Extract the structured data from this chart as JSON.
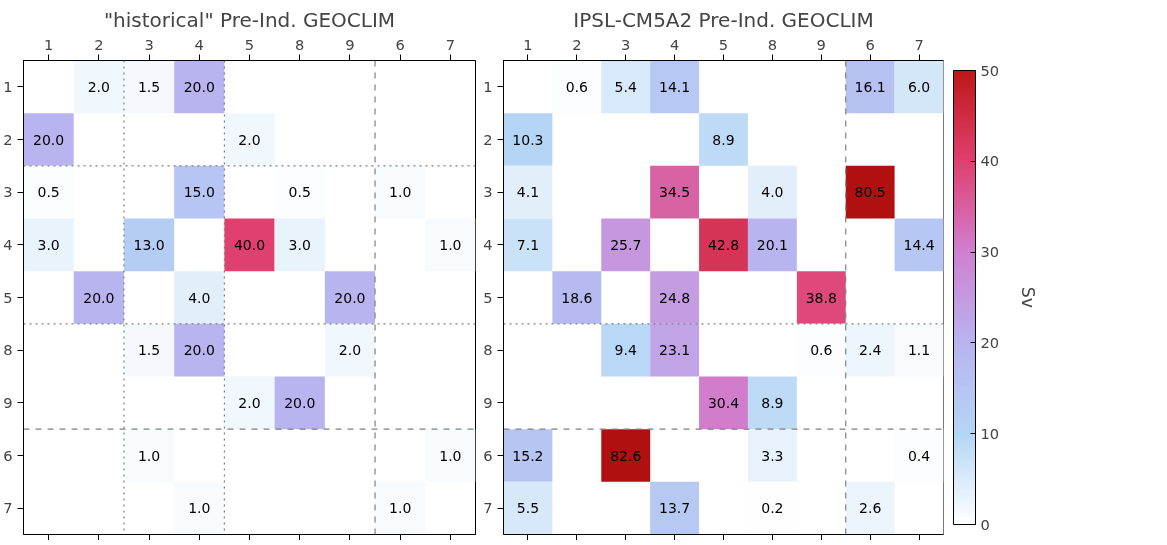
{
  "chart_data": [
    {
      "type": "heatmap",
      "title": "\"historical\" Pre-Ind. GEOCLIM",
      "categories": [
        "1",
        "2",
        "3",
        "4",
        "5",
        "8",
        "9",
        "6",
        "7"
      ],
      "y_categories": [
        "1",
        "2",
        "3",
        "4",
        "5",
        "8",
        "9",
        "6",
        "7"
      ],
      "cells": [
        [
          null,
          2.0,
          1.5,
          20.0,
          null,
          null,
          null,
          null,
          null
        ],
        [
          20.0,
          null,
          null,
          null,
          2.0,
          null,
          null,
          null,
          null
        ],
        [
          0.5,
          null,
          null,
          15.0,
          null,
          0.5,
          null,
          1.0,
          null
        ],
        [
          3.0,
          null,
          13.0,
          null,
          40.0,
          3.0,
          null,
          null,
          1.0
        ],
        [
          null,
          20.0,
          null,
          4.0,
          null,
          null,
          20.0,
          null,
          null
        ],
        [
          null,
          null,
          1.5,
          20.0,
          null,
          null,
          2.0,
          null,
          null
        ],
        [
          null,
          null,
          null,
          null,
          2.0,
          20.0,
          null,
          null,
          null
        ],
        [
          null,
          null,
          1.0,
          null,
          null,
          null,
          null,
          null,
          1.0
        ],
        [
          null,
          null,
          null,
          1.0,
          null,
          null,
          null,
          1.0,
          null
        ]
      ],
      "cell_labels": [
        [
          null,
          "2.0",
          "1.5",
          "20.0",
          null,
          null,
          null,
          null,
          null
        ],
        [
          "20.0",
          null,
          null,
          null,
          "2.0",
          null,
          null,
          null,
          null
        ],
        [
          "0.5",
          null,
          null,
          "15.0",
          null,
          "0.5",
          null,
          "1.0",
          null
        ],
        [
          "3.0",
          null,
          "13.0",
          null,
          "40.0",
          "3.0",
          null,
          null,
          "1.0"
        ],
        [
          null,
          "20.0",
          null,
          "4.0",
          null,
          null,
          "20.0",
          null,
          null
        ],
        [
          null,
          null,
          "1.5",
          "20.0",
          null,
          null,
          "2.0",
          null,
          null
        ],
        [
          null,
          null,
          null,
          null,
          "2.0",
          "20.0",
          null,
          null,
          null
        ],
        [
          null,
          null,
          "1.0",
          null,
          null,
          null,
          null,
          null,
          "1.0"
        ],
        [
          null,
          null,
          null,
          "1.0",
          null,
          null,
          null,
          "1.0",
          null
        ]
      ]
    },
    {
      "type": "heatmap",
      "title": "IPSL-CM5A2 Pre-Ind. GEOCLIM",
      "clabel": "Sv",
      "categories": [
        "1",
        "2",
        "3",
        "4",
        "5",
        "8",
        "9",
        "6",
        "7"
      ],
      "y_categories": [
        "1",
        "2",
        "3",
        "4",
        "5",
        "8",
        "9",
        "6",
        "7"
      ],
      "cells": [
        [
          null,
          0.6,
          5.4,
          14.1,
          null,
          null,
          null,
          16.1,
          6.0
        ],
        [
          10.3,
          null,
          null,
          null,
          8.9,
          null,
          null,
          null,
          null
        ],
        [
          4.1,
          null,
          null,
          34.5,
          null,
          4.0,
          null,
          80.5,
          null
        ],
        [
          7.1,
          null,
          25.7,
          null,
          42.8,
          20.1,
          null,
          null,
          14.4
        ],
        [
          null,
          18.6,
          null,
          24.8,
          null,
          null,
          38.8,
          null,
          null
        ],
        [
          null,
          null,
          9.4,
          23.1,
          null,
          null,
          0.6,
          2.4,
          1.1
        ],
        [
          null,
          null,
          null,
          null,
          30.4,
          8.9,
          null,
          null,
          null
        ],
        [
          15.2,
          null,
          82.6,
          null,
          null,
          3.3,
          null,
          null,
          0.4
        ],
        [
          5.5,
          null,
          null,
          13.7,
          null,
          0.2,
          null,
          2.6,
          null
        ]
      ],
      "cell_labels": [
        [
          null,
          "0.6",
          "5.4",
          "14.1",
          null,
          null,
          null,
          "16.1",
          "6.0"
        ],
        [
          "10.3",
          null,
          null,
          null,
          "8.9",
          null,
          null,
          null,
          null
        ],
        [
          "4.1",
          null,
          null,
          "34.5",
          null,
          "4.0",
          null,
          "80.5",
          null
        ],
        [
          "7.1",
          null,
          "25.7",
          null,
          "42.8",
          "20.1",
          null,
          null,
          "14.4"
        ],
        [
          null,
          "18.6",
          null,
          "24.8",
          null,
          null,
          "38.8",
          null,
          null
        ],
        [
          null,
          null,
          "9.4",
          "23.1",
          null,
          null,
          "0.6",
          "2.4",
          "1.1"
        ],
        [
          null,
          null,
          null,
          null,
          "30.4",
          "8.9",
          null,
          null,
          null
        ],
        [
          "15.2",
          null,
          "82.6",
          null,
          null,
          "3.3",
          null,
          null,
          "0.4"
        ],
        [
          "5.5",
          null,
          null,
          "13.7",
          null,
          "0.2",
          null,
          "2.6",
          null
        ]
      ],
      "clim": [
        0,
        50
      ],
      "cticks": [
        0,
        10,
        20,
        30,
        40,
        50
      ]
    }
  ]
}
